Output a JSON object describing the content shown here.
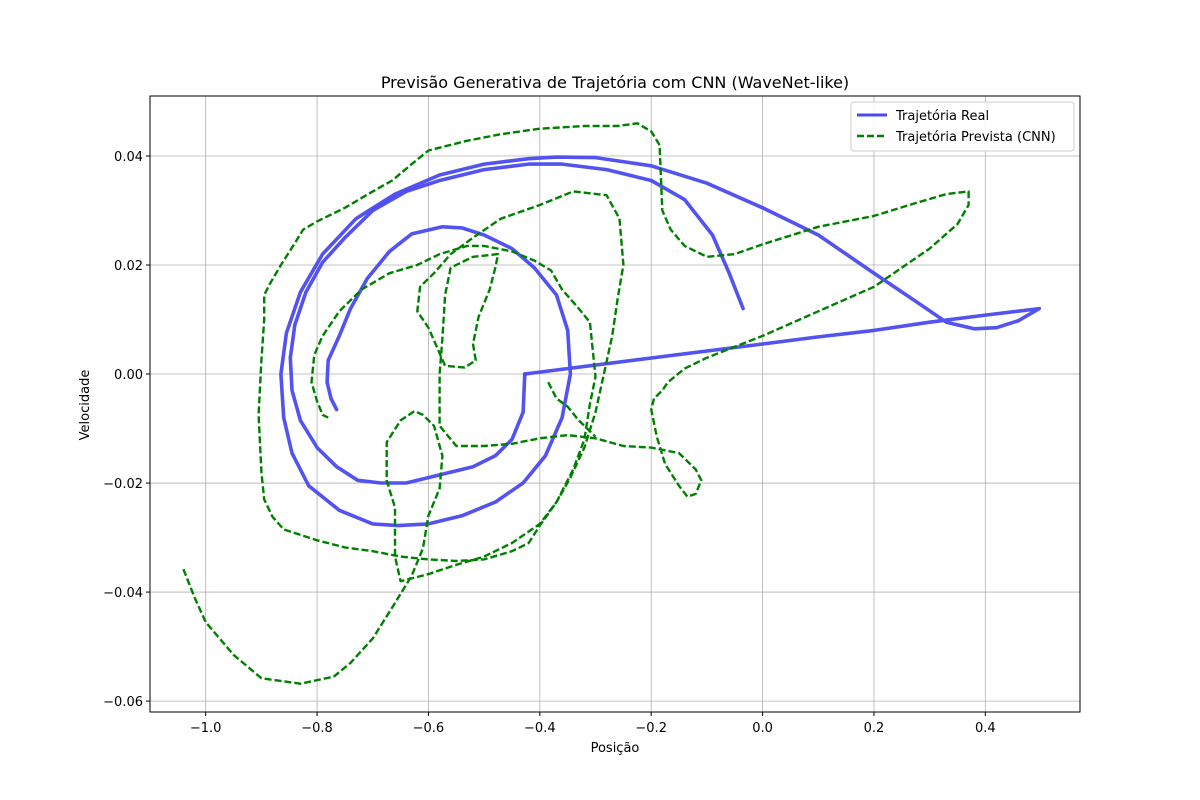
{
  "chart_data": {
    "type": "line",
    "title": "Previsão Generativa de Trajetória com CNN (WaveNet-like)",
    "xlabel": "Posição",
    "ylabel": "Velocidade",
    "xlim": [
      -1.1,
      0.57
    ],
    "ylim": [
      -0.062,
      0.051
    ],
    "xticks": [
      -1.0,
      -0.8,
      -0.6,
      -0.4,
      -0.2,
      0.0,
      0.2,
      0.4
    ],
    "yticks": [
      -0.06,
      -0.04,
      -0.02,
      0.0,
      0.02,
      0.04
    ],
    "xtick_labels": [
      "−1.0",
      "−0.8",
      "−0.6",
      "−0.4",
      "−0.2",
      "0.0",
      "0.2",
      "0.4"
    ],
    "ytick_labels": [
      "−0.06",
      "−0.04",
      "−0.02",
      "0.00",
      "0.02",
      "0.04"
    ],
    "grid": true,
    "legend_position": "top-right",
    "series": [
      {
        "name": "Trajetória Real",
        "color": "#4a4af0",
        "style": "solid",
        "points": [
          [
            -0.427,
            0.0
          ],
          [
            -0.43,
            -0.007
          ],
          [
            -0.45,
            -0.012
          ],
          [
            -0.48,
            -0.015
          ],
          [
            -0.52,
            -0.017
          ],
          [
            -0.58,
            -0.0185
          ],
          [
            -0.64,
            -0.02
          ],
          [
            -0.685,
            -0.02
          ],
          [
            -0.727,
            -0.0195
          ],
          [
            -0.765,
            -0.017
          ],
          [
            -0.8,
            -0.0135
          ],
          [
            -0.83,
            -0.0085
          ],
          [
            -0.845,
            -0.003
          ],
          [
            -0.848,
            0.003
          ],
          [
            -0.84,
            0.009
          ],
          [
            -0.82,
            0.015
          ],
          [
            -0.79,
            0.0205
          ],
          [
            -0.75,
            0.025
          ],
          [
            -0.7,
            0.03
          ],
          [
            -0.64,
            0.0335
          ],
          [
            -0.58,
            0.0355
          ],
          [
            -0.5,
            0.0375
          ],
          [
            -0.42,
            0.0385
          ],
          [
            -0.36,
            0.0385
          ],
          [
            -0.28,
            0.0375
          ],
          [
            -0.2,
            0.0355
          ],
          [
            -0.14,
            0.032
          ],
          [
            -0.09,
            0.0255
          ],
          [
            -0.06,
            0.0185
          ],
          [
            -0.035,
            0.012
          ]
        ]
      },
      {
        "name": "",
        "color": "#4a4af0",
        "style": "solid",
        "points": [
          [
            -0.427,
            0.0
          ],
          [
            0.0,
            0.0055
          ],
          [
            0.1,
            0.0068
          ],
          [
            0.2,
            0.008
          ],
          [
            0.3,
            0.0095
          ],
          [
            0.4,
            0.0108
          ],
          [
            0.497,
            0.012
          ],
          [
            0.46,
            0.0098
          ],
          [
            0.42,
            0.0085
          ],
          [
            0.38,
            0.0083
          ],
          [
            0.33,
            0.0095
          ],
          [
            0.28,
            0.013
          ],
          [
            0.2,
            0.0185
          ],
          [
            0.1,
            0.0255
          ],
          [
            0.0,
            0.0305
          ],
          [
            -0.1,
            0.035
          ],
          [
            -0.2,
            0.0382
          ],
          [
            -0.3,
            0.0397
          ],
          [
            -0.37,
            0.0398
          ],
          [
            -0.42,
            0.0395
          ],
          [
            -0.5,
            0.0385
          ],
          [
            -0.58,
            0.0365
          ],
          [
            -0.66,
            0.033
          ],
          [
            -0.73,
            0.0285
          ],
          [
            -0.79,
            0.022
          ],
          [
            -0.83,
            0.015
          ],
          [
            -0.855,
            0.0075
          ],
          [
            -0.865,
            0.0
          ],
          [
            -0.86,
            -0.008
          ],
          [
            -0.845,
            -0.0145
          ],
          [
            -0.815,
            -0.0205
          ],
          [
            -0.76,
            -0.025
          ],
          [
            -0.7,
            -0.0275
          ],
          [
            -0.655,
            -0.0278
          ],
          [
            -0.6,
            -0.0275
          ],
          [
            -0.54,
            -0.026
          ],
          [
            -0.48,
            -0.0235
          ],
          [
            -0.43,
            -0.02
          ],
          [
            -0.39,
            -0.015
          ],
          [
            -0.36,
            -0.008
          ],
          [
            -0.345,
            0.0
          ],
          [
            -0.35,
            0.008
          ],
          [
            -0.37,
            0.0145
          ],
          [
            -0.41,
            0.0195
          ],
          [
            -0.45,
            0.023
          ],
          [
            -0.5,
            0.0255
          ],
          [
            -0.54,
            0.0268
          ],
          [
            -0.575,
            0.027
          ],
          [
            -0.63,
            0.0257
          ],
          [
            -0.67,
            0.0225
          ],
          [
            -0.71,
            0.0175
          ],
          [
            -0.74,
            0.012
          ],
          [
            -0.76,
            0.007
          ],
          [
            -0.78,
            0.0025
          ],
          [
            -0.782,
            -0.0015
          ],
          [
            -0.775,
            -0.0045
          ],
          [
            -0.765,
            -0.0065
          ]
        ]
      },
      {
        "name": "Trajetória Prevista (CNN)",
        "color": "#008000",
        "style": "dashed",
        "points": [
          [
            -1.04,
            -0.0358
          ],
          [
            -1.02,
            -0.041
          ],
          [
            -1.0,
            -0.0455
          ],
          [
            -0.95,
            -0.0515
          ],
          [
            -0.9,
            -0.0558
          ],
          [
            -0.83,
            -0.0568
          ],
          [
            -0.77,
            -0.0555
          ],
          [
            -0.74,
            -0.053
          ],
          [
            -0.7,
            -0.0485
          ],
          [
            -0.66,
            -0.042
          ],
          [
            -0.63,
            -0.037
          ],
          [
            -0.61,
            -0.032
          ],
          [
            -0.6,
            -0.026
          ],
          [
            -0.58,
            -0.021
          ],
          [
            -0.575,
            -0.015
          ],
          [
            -0.59,
            -0.0095
          ],
          [
            -0.61,
            -0.0075
          ],
          [
            -0.625,
            -0.0068
          ],
          [
            -0.65,
            -0.0085
          ],
          [
            -0.675,
            -0.0125
          ],
          [
            -0.675,
            -0.0195
          ],
          [
            -0.66,
            -0.0245
          ],
          [
            -0.66,
            -0.0335
          ],
          [
            -0.65,
            -0.038
          ],
          [
            -0.6,
            -0.0367
          ],
          [
            -0.55,
            -0.035
          ],
          [
            -0.5,
            -0.0335
          ],
          [
            -0.45,
            -0.031
          ],
          [
            -0.4,
            -0.0275
          ],
          [
            -0.37,
            -0.0235
          ],
          [
            -0.345,
            -0.019
          ],
          [
            -0.32,
            -0.0135
          ],
          [
            -0.3,
            -0.007
          ],
          [
            -0.285,
            0.0
          ],
          [
            -0.27,
            0.007
          ],
          [
            -0.26,
            0.014
          ],
          [
            -0.25,
            0.02
          ],
          [
            -0.257,
            0.0285
          ],
          [
            -0.28,
            0.0328
          ],
          [
            -0.34,
            0.0335
          ],
          [
            -0.4,
            0.031
          ],
          [
            -0.47,
            0.0285
          ],
          [
            -0.52,
            0.025
          ],
          [
            -0.56,
            0.022
          ],
          [
            -0.59,
            0.0185
          ],
          [
            -0.615,
            0.016
          ],
          [
            -0.62,
            0.0115
          ],
          [
            -0.6,
            0.0085
          ],
          [
            -0.585,
            0.005
          ],
          [
            -0.57,
            0.0015
          ],
          [
            -0.535,
            0.0012
          ],
          [
            -0.515,
            0.0025
          ],
          [
            -0.52,
            0.0055
          ],
          [
            -0.51,
            0.0105
          ],
          [
            -0.49,
            0.0155
          ],
          [
            -0.48,
            0.0195
          ],
          [
            -0.475,
            0.022
          ],
          [
            -0.52,
            0.0215
          ],
          [
            -0.56,
            0.0195
          ],
          [
            -0.57,
            0.0145
          ],
          [
            -0.575,
            0.0065
          ],
          [
            -0.58,
            0.0
          ],
          [
            -0.58,
            -0.0095
          ],
          [
            -0.55,
            -0.0132
          ],
          [
            -0.5,
            -0.0132
          ],
          [
            -0.45,
            -0.0128
          ],
          [
            -0.4,
            -0.0118
          ],
          [
            -0.35,
            -0.0112
          ],
          [
            -0.3,
            -0.0118
          ],
          [
            -0.25,
            -0.0132
          ],
          [
            -0.2,
            -0.0135
          ],
          [
            -0.15,
            -0.0145
          ],
          [
            -0.12,
            -0.0175
          ],
          [
            -0.11,
            -0.0195
          ],
          [
            -0.12,
            -0.022
          ],
          [
            -0.135,
            -0.0225
          ],
          [
            -0.15,
            -0.0205
          ],
          [
            -0.175,
            -0.0165
          ],
          [
            -0.19,
            -0.0115
          ],
          [
            -0.2,
            -0.0065
          ],
          [
            -0.195,
            -0.0045
          ],
          [
            -0.18,
            -0.003
          ],
          [
            -0.17,
            -0.0015
          ],
          [
            -0.14,
            0.001
          ],
          [
            -0.1,
            0.003
          ],
          [
            0.0,
            0.007
          ],
          [
            0.1,
            0.0115
          ],
          [
            0.2,
            0.016
          ],
          [
            0.3,
            0.023
          ],
          [
            0.35,
            0.0275
          ],
          [
            0.37,
            0.031
          ],
          [
            0.37,
            0.0335
          ],
          [
            0.33,
            0.033
          ],
          [
            0.27,
            0.0312
          ],
          [
            0.2,
            0.029
          ],
          [
            0.1,
            0.027
          ],
          [
            0.0,
            0.0238
          ],
          [
            -0.05,
            0.022
          ],
          [
            -0.1,
            0.0215
          ],
          [
            -0.14,
            0.0235
          ],
          [
            -0.165,
            0.0265
          ],
          [
            -0.18,
            0.03
          ],
          [
            -0.185,
            0.042
          ],
          [
            -0.2,
            0.0445
          ],
          [
            -0.225,
            0.046
          ],
          [
            -0.26,
            0.0455
          ],
          [
            -0.32,
            0.0455
          ],
          [
            -0.4,
            0.045
          ],
          [
            -0.47,
            0.044
          ],
          [
            -0.53,
            0.0428
          ],
          [
            -0.6,
            0.041
          ],
          [
            -0.63,
            0.0385
          ],
          [
            -0.665,
            0.0355
          ],
          [
            -0.7,
            0.0335
          ],
          [
            -0.75,
            0.0305
          ],
          [
            -0.8,
            0.028
          ],
          [
            -0.825,
            0.0265
          ],
          [
            -0.84,
            0.024
          ],
          [
            -0.865,
            0.02
          ],
          [
            -0.885,
            0.0165
          ],
          [
            -0.895,
            0.0145
          ],
          [
            -0.895,
            0.01
          ],
          [
            -0.9,
            0.0025
          ],
          [
            -0.905,
            -0.0075
          ],
          [
            -0.9,
            -0.018
          ],
          [
            -0.895,
            -0.023
          ],
          [
            -0.88,
            -0.0262
          ],
          [
            -0.86,
            -0.0285
          ],
          [
            -0.8,
            -0.0305
          ],
          [
            -0.75,
            -0.0318
          ],
          [
            -0.7,
            -0.0325
          ],
          [
            -0.65,
            -0.0335
          ],
          [
            -0.6,
            -0.034
          ],
          [
            -0.55,
            -0.0343
          ],
          [
            -0.5,
            -0.034
          ],
          [
            -0.45,
            -0.0325
          ],
          [
            -0.42,
            -0.031
          ],
          [
            -0.4,
            -0.0278
          ],
          [
            -0.37,
            -0.0235
          ],
          [
            -0.34,
            -0.0175
          ],
          [
            -0.32,
            -0.012
          ],
          [
            -0.31,
            -0.0055
          ],
          [
            -0.3,
            -0.0005
          ],
          [
            -0.305,
            0.0045
          ],
          [
            -0.31,
            0.0095
          ],
          [
            -0.33,
            0.012
          ],
          [
            -0.36,
            0.0155
          ],
          [
            -0.38,
            0.019
          ],
          [
            -0.41,
            0.0208
          ],
          [
            -0.45,
            0.0225
          ],
          [
            -0.5,
            0.0235
          ],
          [
            -0.53,
            0.0235
          ],
          [
            -0.58,
            0.022
          ],
          [
            -0.62,
            0.02
          ],
          [
            -0.67,
            0.0185
          ],
          [
            -0.72,
            0.0155
          ],
          [
            -0.76,
            0.0115
          ],
          [
            -0.79,
            0.007
          ],
          [
            -0.805,
            0.0035
          ],
          [
            -0.81,
            -0.0015
          ],
          [
            -0.8,
            -0.005
          ],
          [
            -0.79,
            -0.0075
          ],
          [
            -0.78,
            -0.008
          ]
        ]
      },
      {
        "name": "",
        "color": "#008000",
        "style": "dashed",
        "points": [
          [
            -0.385,
            -0.0015
          ],
          [
            -0.37,
            -0.0045
          ],
          [
            -0.35,
            -0.006
          ],
          [
            -0.33,
            -0.0085
          ],
          [
            -0.3,
            -0.0115
          ]
        ]
      }
    ]
  }
}
